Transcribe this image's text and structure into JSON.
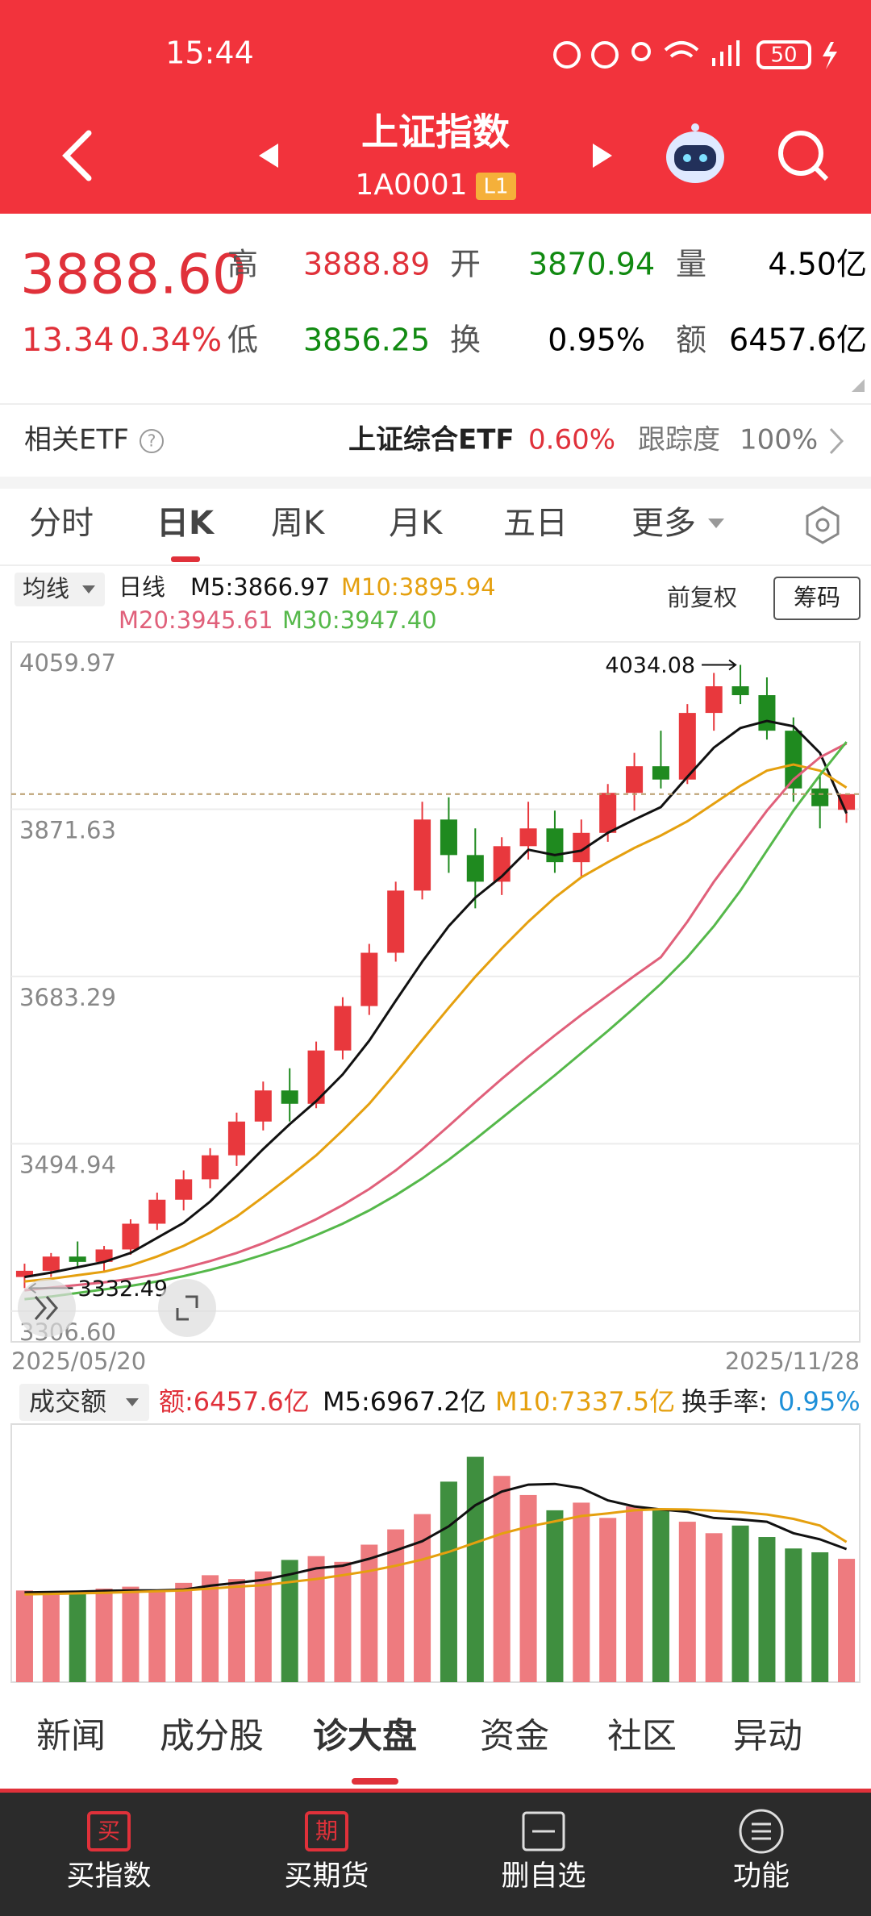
{
  "status": {
    "time": "15:44",
    "battery": "50"
  },
  "header": {
    "title": "上证指数",
    "code": "1A0001",
    "badge": "L1"
  },
  "quote": {
    "price": "3888.60",
    "change": "13.34",
    "change_pct": "0.34%",
    "fields": [
      {
        "label": "高",
        "value": "3888.89"
      },
      {
        "label": "开",
        "value": "3870.94"
      },
      {
        "label": "量",
        "value": "4.50亿"
      },
      {
        "label": "低",
        "value": "3856.25"
      },
      {
        "label": "换",
        "value": "0.95%"
      },
      {
        "label": "额",
        "value": "6457.6亿"
      }
    ]
  },
  "etf": {
    "label": "相关ETF",
    "name": "上证综合ETF",
    "pct": "0.60%",
    "track_label": "跟踪度",
    "track": "100%"
  },
  "tabs": [
    "分时",
    "日K",
    "周K",
    "月K",
    "五日",
    "更多"
  ],
  "chart_data": {
    "type": "candlestick",
    "ma_selector": "均线",
    "period": "日线",
    "adjust": "前复权",
    "chips": "筹码",
    "categories": [
      "2025/05/20",
      null,
      null,
      null,
      null,
      null,
      null,
      null,
      null,
      null,
      null,
      null,
      null,
      null,
      null,
      null,
      null,
      null,
      null,
      null,
      null,
      null,
      null,
      null,
      null,
      null,
      null,
      null,
      null,
      null,
      null,
      "2025/11/28"
    ],
    "open": [
      3345,
      3352,
      3368,
      3362,
      3376,
      3405,
      3432,
      3455,
      3482,
      3520,
      3555,
      3540,
      3600,
      3650,
      3710,
      3780,
      3860,
      3820,
      3790,
      3830,
      3850,
      3812,
      3845,
      3890,
      3920,
      3905,
      3980,
      4010,
      4000,
      3960,
      3895,
      3870.94
    ],
    "high": [
      3360,
      3372,
      3385,
      3380,
      3410,
      3440,
      3465,
      3490,
      3530,
      3565,
      3580,
      3610,
      3660,
      3720,
      3790,
      3880,
      3885,
      3850,
      3840,
      3880,
      3870,
      3860,
      3900,
      3935,
      3960,
      3990,
      4025,
      4034.08,
      4020,
      3975,
      3910,
      3888.89
    ],
    "low": [
      3332.49,
      3345,
      3355,
      3350,
      3370,
      3398,
      3420,
      3445,
      3470,
      3510,
      3520,
      3535,
      3590,
      3640,
      3700,
      3770,
      3800,
      3760,
      3775,
      3815,
      3800,
      3795,
      3835,
      3870,
      3895,
      3900,
      3960,
      3990,
      3950,
      3880,
      3850,
      3856.25
    ],
    "close": [
      3352,
      3368,
      3362,
      3376,
      3405,
      3432,
      3455,
      3482,
      3520,
      3555,
      3540,
      3600,
      3650,
      3710,
      3780,
      3860,
      3820,
      3790,
      3830,
      3850,
      3812,
      3845,
      3890,
      3920,
      3905,
      3980,
      4010,
      4000,
      3960,
      3895,
      3875,
      3888.6
    ],
    "up_color": "#e8383d",
    "down_color": "#1f8a1f",
    "series": [
      {
        "label": "M5:3866.97",
        "color": "#111111",
        "values": [
          3345,
          3350,
          3356,
          3362,
          3372,
          3389,
          3406,
          3430,
          3459,
          3489,
          3517,
          3543,
          3573,
          3611,
          3656,
          3700,
          3740,
          3772,
          3796,
          3826,
          3820,
          3825,
          3845,
          3860,
          3874,
          3908,
          3941,
          3963,
          3971,
          3965,
          3935,
          3866.97
        ]
      },
      {
        "label": "M10:3895.94",
        "color": "#e5a00f",
        "values": [
          3340,
          3343,
          3347,
          3351,
          3358,
          3368,
          3380,
          3395,
          3413,
          3435,
          3458,
          3482,
          3510,
          3540,
          3575,
          3612,
          3648,
          3683,
          3715,
          3745,
          3772,
          3795,
          3812,
          3828,
          3842,
          3858,
          3878,
          3898,
          3915,
          3922,
          3915,
          3895.94
        ]
      },
      {
        "label": "M20:3945.61",
        "color": "#e0607a",
        "values": [
          3330,
          3333,
          3336,
          3339,
          3343,
          3348,
          3355,
          3363,
          3372,
          3383,
          3396,
          3410,
          3426,
          3444,
          3465,
          3489,
          3515,
          3542,
          3568,
          3593,
          3617,
          3640,
          3662,
          3684,
          3705,
          3745,
          3790,
          3830,
          3870,
          3905,
          3930,
          3945.61
        ]
      },
      {
        "label": "M30:3947.40",
        "color": "#55b84a",
        "values": [
          3320,
          3323,
          3327,
          3331,
          3335,
          3340,
          3346,
          3353,
          3361,
          3370,
          3380,
          3392,
          3405,
          3420,
          3437,
          3456,
          3477,
          3500,
          3524,
          3548,
          3572,
          3597,
          3622,
          3648,
          3675,
          3705,
          3740,
          3780,
          3825,
          3870,
          3910,
          3947.4
        ]
      }
    ],
    "ylim": [
      3272,
      4059.97
    ],
    "yticks": [
      {
        "value": 3306.6,
        "label": "3306.60"
      },
      3494.94,
      3683.29,
      3871.63,
      4059.97
    ],
    "annotations": [
      {
        "label": "4034.08",
        "value": 4034.08
      },
      {
        "label": "3332.49",
        "value": 3332.49
      }
    ],
    "volume": {
      "selector": "成交额",
      "label": "额:6457.6亿",
      "turnover_label": "换手率:",
      "turnover": "0.95%",
      "values": [
        4800,
        4600,
        4700,
        4900,
        5000,
        4800,
        5200,
        5600,
        5400,
        5800,
        6400,
        6600,
        6300,
        7200,
        8000,
        8800,
        10500,
        11800,
        10800,
        9800,
        9000,
        9400,
        8600,
        9200,
        9000,
        8400,
        7800,
        8200,
        7600,
        7000,
        6800,
        6457.6
      ],
      "ylim": [
        0,
        12500
      ],
      "series": [
        {
          "label": "M5:6967.2亿",
          "color": "#111111",
          "values": [
            4700,
            4720,
            4740,
            4780,
            4800,
            4800,
            4850,
            5050,
            5200,
            5360,
            5640,
            5960,
            6100,
            6460,
            6900,
            7380,
            8160,
            9260,
            9980,
            10340,
            10380,
            10160,
            9520,
            9200,
            9040,
            8920,
            8600,
            8520,
            8400,
            7800,
            7480,
            6967.2
          ]
        },
        {
          "label": "M10:7337.5亿",
          "color": "#e5a00f",
          "values": [
            4600,
            4620,
            4650,
            4680,
            4720,
            4760,
            4800,
            4900,
            5000,
            5080,
            5240,
            5400,
            5600,
            5820,
            6100,
            6420,
            6820,
            7300,
            7780,
            8140,
            8420,
            8700,
            8840,
            9000,
            9060,
            9040,
            8980,
            8900,
            8780,
            8550,
            8200,
            7337.5
          ]
        }
      ]
    }
  },
  "bottom_tabs": [
    "新闻",
    "成分股",
    "诊大盘",
    "资金",
    "社区",
    "异动"
  ],
  "nav": [
    {
      "icon": "买",
      "label": "买指数"
    },
    {
      "icon": "期",
      "label": "买期货"
    },
    {
      "label": "删自选"
    },
    {
      "label": "功能"
    }
  ]
}
